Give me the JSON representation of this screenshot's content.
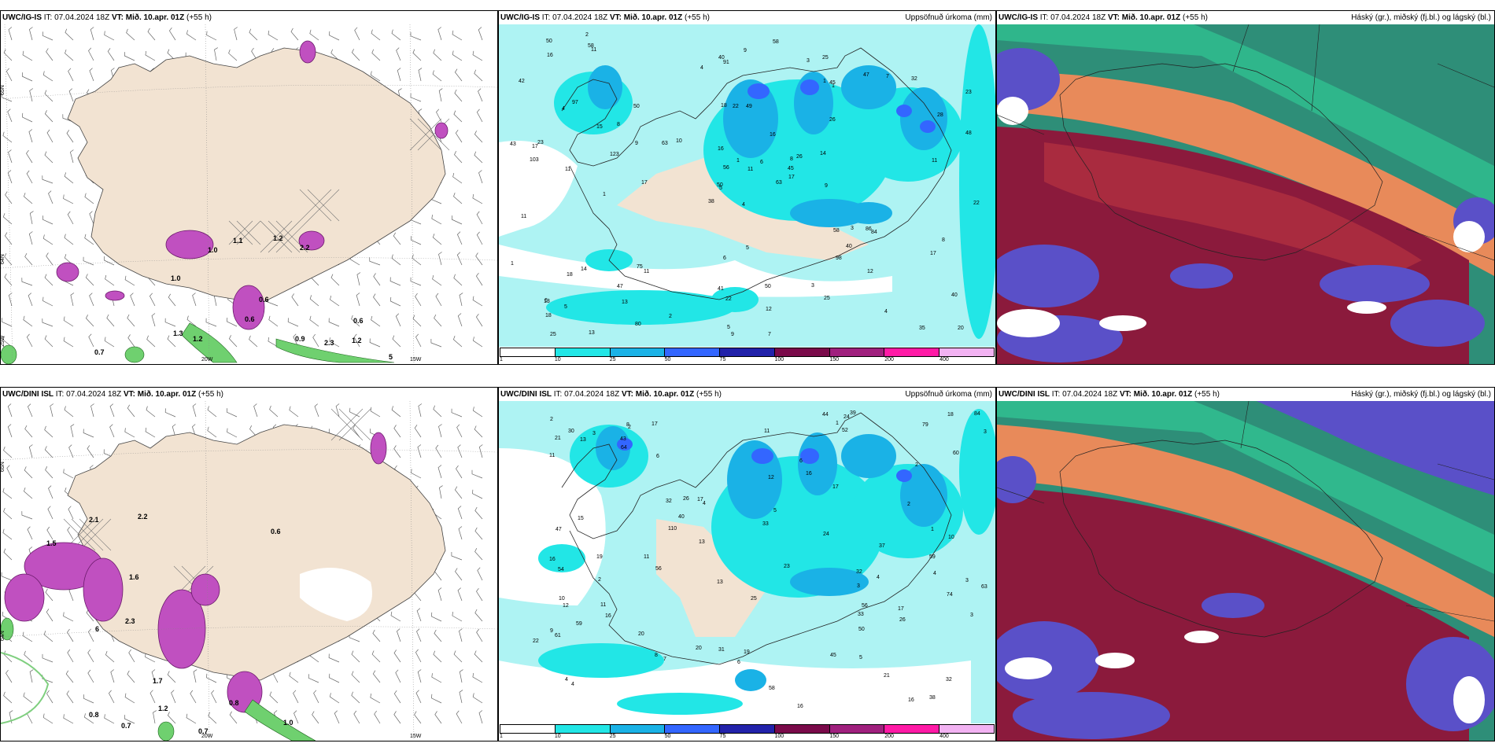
{
  "rows": [
    {
      "model": "UWC/IG-IS",
      "it_label": "IT:",
      "it_value": "07.04.2024 18Z",
      "vt_label": "VT:",
      "vt_value": "Mið. 10.apr. 01Z",
      "lead": "(+55 h)",
      "wind_labels": [
        "0.7",
        "0.6",
        "0.6",
        "0.6",
        "1.0",
        "1.2",
        "1.2",
        "2.2",
        "2.3",
        "1.3",
        "5",
        "1.0",
        "1.2",
        "1.1",
        "0.9"
      ],
      "axis_labels": [
        "65N",
        "64N",
        "25W",
        "20W",
        "15W"
      ],
      "precip_values": [
        "4",
        "4",
        "5",
        "6",
        "8",
        "11",
        "25",
        "49",
        "45",
        "63",
        "11",
        "20",
        "11",
        "23",
        "38",
        "26",
        "13",
        "18",
        "16",
        "14",
        "10",
        "18",
        "13",
        "22",
        "26",
        "84",
        "97",
        "91",
        "103",
        "58",
        "48",
        "50",
        "41",
        "56",
        "50",
        "47",
        "75",
        "35",
        "40",
        "86",
        "58",
        "63",
        "123",
        "98",
        "80",
        "43",
        "45",
        "25",
        "22",
        "17",
        "18",
        "28",
        "42",
        "40",
        "25",
        "47",
        "58",
        "50",
        "50",
        "32",
        "9",
        "17",
        "23",
        "8",
        "7",
        "2",
        "3",
        "4",
        "1",
        "1",
        "6",
        "2",
        "3",
        "9",
        "13",
        "16",
        "15",
        "11",
        "16",
        "12",
        "6",
        "5",
        "9",
        "8",
        "5",
        "11",
        "5",
        "4",
        "7",
        "3",
        "40",
        "22",
        "14",
        "12",
        "11",
        "17",
        "17",
        "9",
        "1",
        "1",
        "1"
      ],
      "precip_title": "Uppsöfnuð úrkoma (mm)",
      "cloud_title": "Háský (gr.), miðský (fj.bl.) og lágský (bl.)"
    },
    {
      "model": "UWC/DINI ISL",
      "it_label": "IT:",
      "it_value": "07.04.2024 18Z",
      "vt_label": "VT:",
      "vt_value": "Mið. 10.apr. 01Z",
      "lead": "(+55 h)",
      "wind_labels": [
        "0.7",
        "0.7",
        "0.8",
        "0.8",
        "2.1",
        "1.5",
        "6",
        "1.0",
        "2.2",
        "1.6",
        "0.6",
        "1.2",
        "2.3",
        "1.7"
      ],
      "axis_labels": [
        "65N",
        "64N",
        "20W",
        "15W"
      ],
      "precip_values": [
        "3",
        "4",
        "4",
        "2",
        "4",
        "21",
        "61",
        "52",
        "32",
        "16",
        "11",
        "16",
        "21",
        "32",
        "20",
        "10",
        "25",
        "23",
        "17",
        "16",
        "84",
        "79",
        "110",
        "74",
        "44",
        "43",
        "56",
        "54",
        "64",
        "37",
        "58",
        "45",
        "40",
        "56",
        "59",
        "26",
        "33",
        "19",
        "19",
        "59",
        "60",
        "39",
        "38",
        "31",
        "17",
        "20",
        "22",
        "30",
        "24",
        "47",
        "63",
        "26",
        "18",
        "32",
        "50",
        "16",
        "17",
        "2",
        "2",
        "3",
        "4",
        "6",
        "5",
        "10",
        "11",
        "15",
        "13",
        "11",
        "11",
        "9",
        "16",
        "17",
        "13",
        "13",
        "33",
        "24",
        "12",
        "8",
        "7",
        "2",
        "3",
        "6",
        "1",
        "2",
        "1",
        "3",
        "8",
        "6",
        "3",
        "12",
        "5",
        "4"
      ],
      "precip_title": "Uppsöfnuð úrkoma (mm)",
      "cloud_title": "Háský (gr.), miðský (fj.bl.) og lágský (bl.)"
    }
  ],
  "legend": {
    "ticks": [
      "1",
      "10",
      "25",
      "50",
      "75",
      "100",
      "150",
      "200",
      "400"
    ],
    "colors": [
      "#ffffff",
      "#22e6e6",
      "#1ab2e6",
      "#3366ff",
      "#2222aa",
      "#7a0a4a",
      "#a0207e",
      "#ff1aa6",
      "#f2b2f2"
    ]
  },
  "colors": {
    "land": "#f2e3d2",
    "sea_precip": "#aef3f3",
    "purple": "#c050c0",
    "green": "#28a028",
    "cloud_high_red": "#8b1a3c",
    "cloud_mid_orange": "#e07040",
    "cloud_low_blue": "#5a50c8",
    "cloud_green": "#2ab090"
  }
}
